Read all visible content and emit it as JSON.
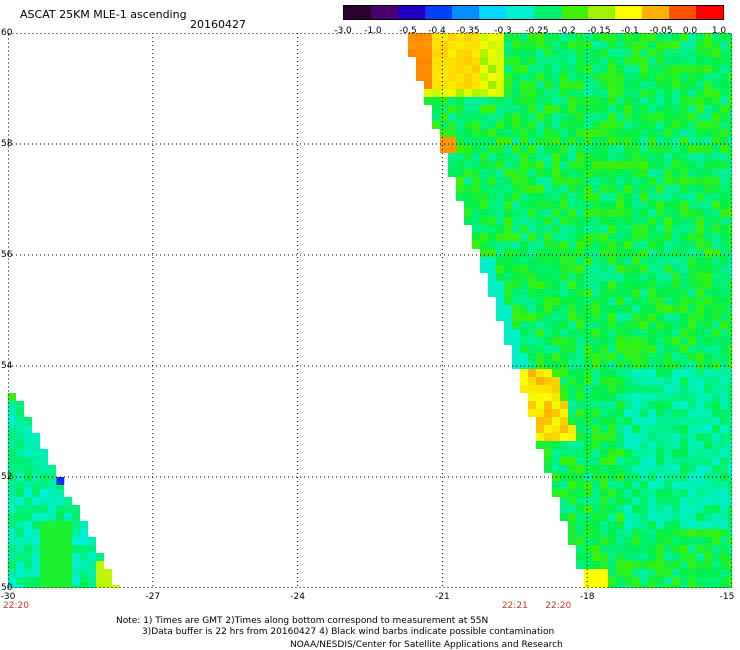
{
  "title": "ASCAT 25KM MLE-1 ascending",
  "date": "20160427",
  "colorbar": {
    "labels": [
      "-3.0",
      "-1.0",
      "-0.5",
      "-0.4",
      "-0.35",
      "-0.3",
      "-0.25",
      "-0.2",
      "-0.15",
      "-0.1",
      "-0.05",
      "0.0",
      "1.0"
    ],
    "colors": [
      "#2a0030",
      "#4a0070",
      "#2000c0",
      "#0040ff",
      "#0090ff",
      "#00d8ff",
      "#00f0d0",
      "#00f070",
      "#40f000",
      "#a0f000",
      "#ffff00",
      "#ffb000",
      "#ff5000",
      "#ff0000"
    ]
  },
  "map": {
    "lat_labels": [
      "60",
      "58",
      "56",
      "54",
      "52",
      "50"
    ],
    "lon_labels": [
      "-30",
      "-27",
      "-24",
      "-21",
      "-18",
      "-15"
    ],
    "time_labels": [
      {
        "text": "22:20",
        "lon": -30
      },
      {
        "text": "22:21",
        "lon": -19.5
      },
      {
        "text": "22:20",
        "lon": -18.6
      }
    ]
  },
  "chart_data": {
    "type": "heatmap",
    "title": "ASCAT 25KM MLE-1 ascending",
    "xlabel": "",
    "ylabel": "",
    "xlim": [
      -30,
      -15
    ],
    "ylim": [
      50,
      60
    ],
    "swaths": [
      {
        "name": "",
        "lon_range_at_lat50": [
          -30,
          -27.7
        ],
        "lat_top": 53.7,
        "dominant_value_range": [
          -0.3,
          -0.15
        ]
      },
      {
        "name": "",
        "lon_range_at_lat60": [
          -21.8,
          -15
        ],
        "lon_range_at_lat50": [
          -18.0,
          -15
        ],
        "dominant_value_range": [
          -0.2,
          -0.1
        ],
        "max_value_region": {
          "lat": [
            59,
            60
          ],
          "lon": [
            -21.8,
            -20.3
          ],
          "value": 0.0
        }
      }
    ],
    "grid": true
  },
  "note": {
    "line1": "Note: 1) Times are GMT 2)Times along bottom correspond to measurement at 55N",
    "line2": "3)Data buffer is 22 hrs from 20160427 4) Black wind barbs indicate possible contamination"
  },
  "credit": "NOAA/NESDIS/Center for Satellite Applications and Research"
}
